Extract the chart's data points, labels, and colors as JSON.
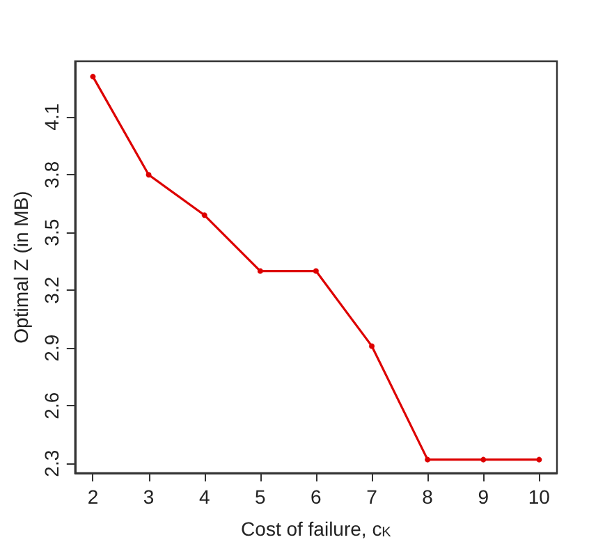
{
  "chart_data": {
    "type": "line",
    "xlabel": "Cost of failure, c$_{K}$",
    "ylabel": "Optimal Z (in MB)",
    "x": [
      2,
      3,
      4,
      5,
      6,
      7,
      8,
      9,
      10
    ],
    "series": [
      {
        "color": "#dd0000",
        "values": [
          4.31,
          3.8,
          3.59,
          3.3,
          3.3,
          2.91,
          2.32,
          2.32,
          2.32
        ]
      }
    ],
    "xlim": [
      1.68,
      10.32
    ],
    "xticks": [
      2,
      3,
      4,
      5,
      6,
      7,
      8,
      9,
      10
    ],
    "ylim": [
      2.25,
      4.39
    ],
    "yticks": [
      2.3,
      2.6,
      2.9,
      3.2,
      3.5,
      3.8,
      4.1
    ],
    "marker": "circle",
    "line_style": "solid"
  }
}
